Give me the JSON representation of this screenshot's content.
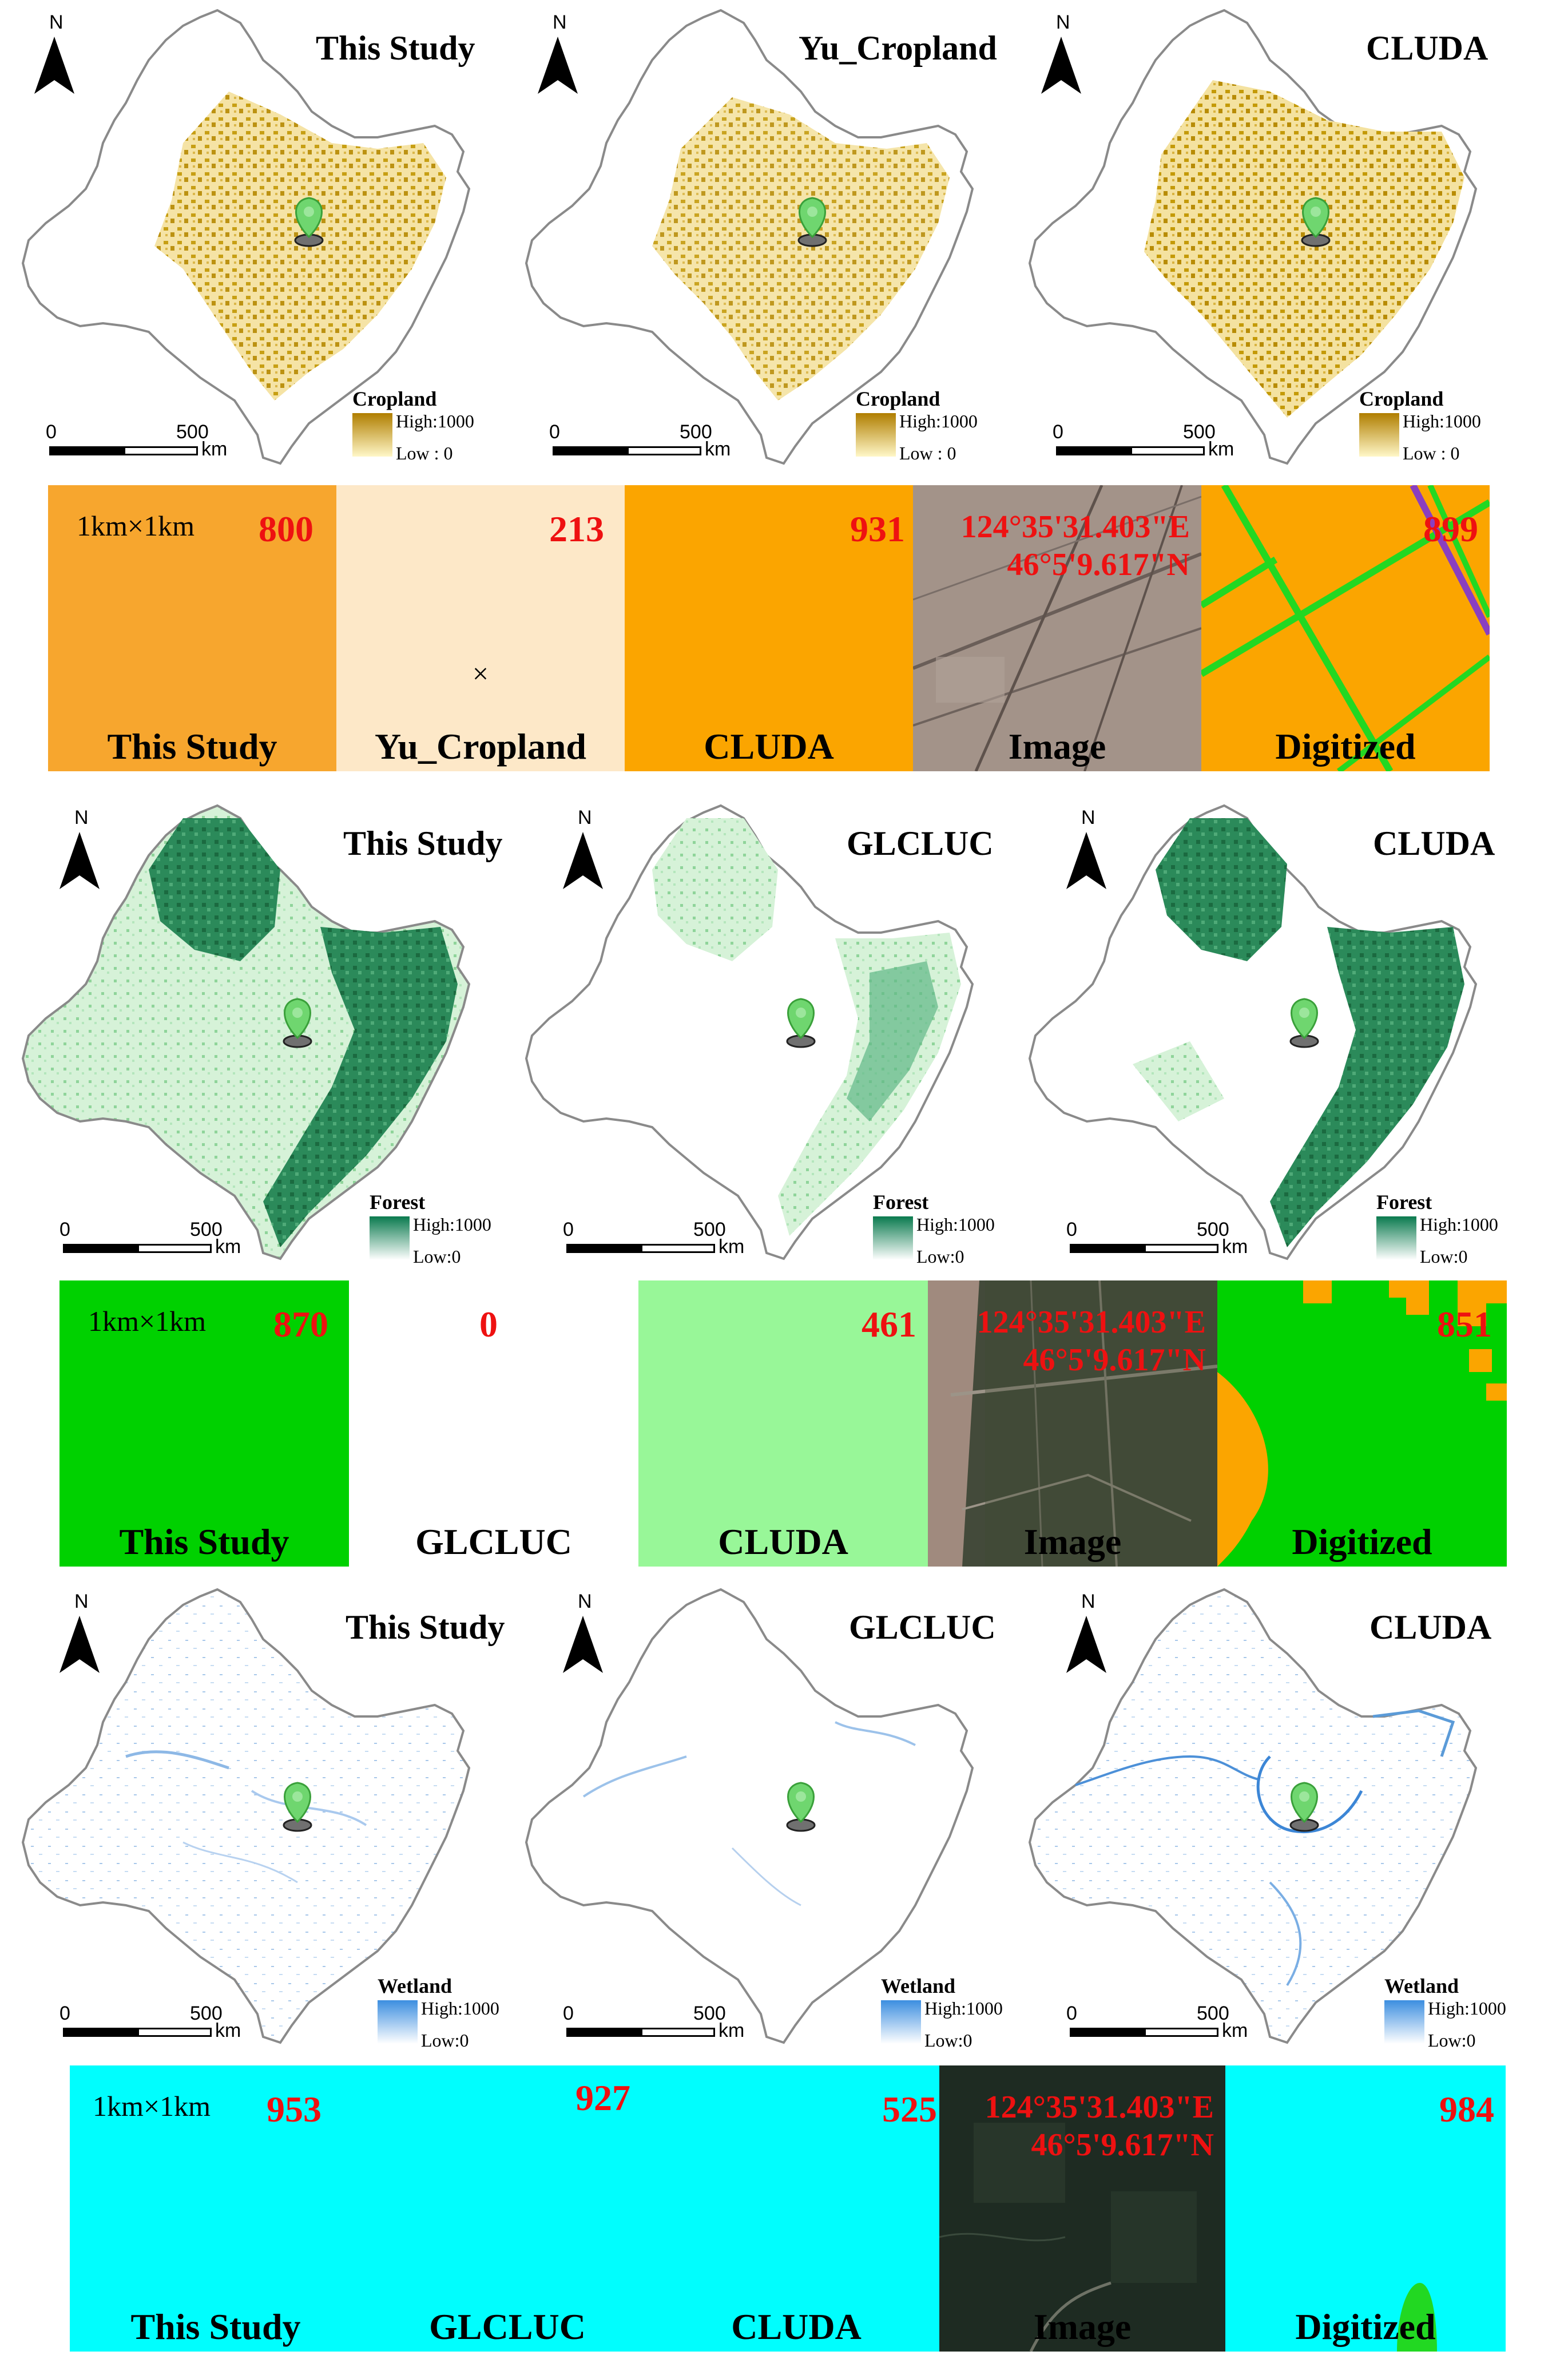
{
  "colors": {
    "cropland_tile": "#f7a62e",
    "cropland_light": "#fde8c8",
    "cropland_orange": "#fba500",
    "forest_green": "#00d100",
    "forest_light": "#98f798",
    "wetland_cyan": "#00fefe",
    "value_red": "#ee1111",
    "digitized_line_green": "#22d822",
    "map_cropland": "#c49a08",
    "map_forest": "#1b7a4c",
    "map_wetland": "#5b9bd8",
    "map_outline": "#8a8a8a"
  },
  "common": {
    "north_letter": "N",
    "scale_zero": "0",
    "scale_max": "500",
    "scale_unit": "km",
    "tile_size_label": "1km×1km",
    "coord_lon": "124°35'31.403\"E",
    "coord_lat": "46°5'9.617\"N"
  },
  "cropland": {
    "maps": [
      {
        "title": "This Study",
        "legend_title": "Cropland",
        "legend_high": "High:1000",
        "legend_low": "Low : 0"
      },
      {
        "title": "Yu_Cropland",
        "legend_title": "Cropland",
        "legend_high": "High:1000",
        "legend_low": "Low : 0"
      },
      {
        "title": "CLUDA",
        "legend_title": "Cropland",
        "legend_high": "High:1000",
        "legend_low": "Low : 0"
      }
    ],
    "tiles": [
      {
        "label": "This Study",
        "value": "800"
      },
      {
        "label": "Yu_Cropland",
        "value": "213",
        "mark": "×"
      },
      {
        "label": "CLUDA",
        "value": "931"
      },
      {
        "label": "Image"
      },
      {
        "label": "Digitized",
        "value": "899"
      }
    ]
  },
  "forest": {
    "maps": [
      {
        "title": "This Study",
        "legend_title": "Forest",
        "legend_high": "High:1000",
        "legend_low": "Low:0"
      },
      {
        "title": "GLCLUC",
        "legend_title": "Forest",
        "legend_high": "High:1000",
        "legend_low": "Low:0"
      },
      {
        "title": "CLUDA",
        "legend_title": "Forest",
        "legend_high": "High:1000",
        "legend_low": "Low:0"
      }
    ],
    "tiles": [
      {
        "label": "This Study",
        "value": "870"
      },
      {
        "label": "GLCLUC",
        "value": "0"
      },
      {
        "label": "CLUDA",
        "value": "461"
      },
      {
        "label": "Image"
      },
      {
        "label": "Digitized",
        "value": "851"
      }
    ]
  },
  "wetland": {
    "maps": [
      {
        "title": "This Study",
        "legend_title": "Wetland",
        "legend_high": "High:1000",
        "legend_low": "Low:0"
      },
      {
        "title": "GLCLUC",
        "legend_title": "Wetland",
        "legend_high": "High:1000",
        "legend_low": "Low:0"
      },
      {
        "title": "CLUDA",
        "legend_title": "Wetland",
        "legend_high": "High:1000",
        "legend_low": "Low:0"
      }
    ],
    "tiles": [
      {
        "label": "This Study",
        "value": "953"
      },
      {
        "label": "GLCLUC",
        "value": "927"
      },
      {
        "label": "CLUDA",
        "value": "525"
      },
      {
        "label": "Image"
      },
      {
        "label": "Digitized",
        "value": "984"
      }
    ]
  }
}
